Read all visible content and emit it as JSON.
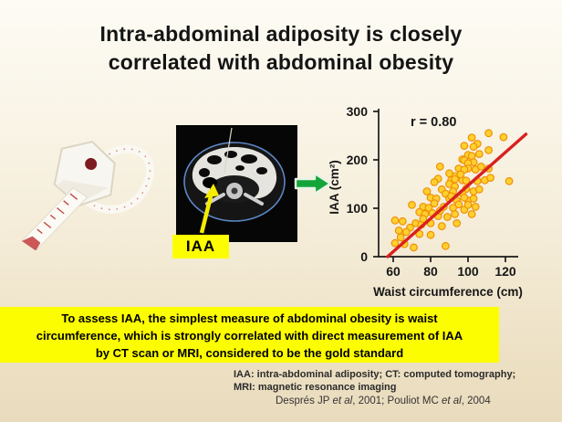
{
  "slide": {
    "title": {
      "line1": "Intra-abdominal adiposity is closely",
      "line2": "correlated with abdominal obesity"
    },
    "ct_label": "IAA",
    "highlight_box": {
      "bg_color": "#fdfd02",
      "lines": [
        "To assess IAA, the simplest measure of abdominal obesity is waist",
        "circumference, which is strongly correlated with direct measurement of IAA",
        "by CT scan or MRI, considered to be the gold standard"
      ]
    },
    "footnote": {
      "line1": "IAA: intra-abdominal adiposity; CT: computed tomography;",
      "line2": "MRI: magnetic resonance imaging"
    },
    "citation": {
      "p1": "Després JP ",
      "i1": "et al",
      "p2": ",  2001; Pouliot MC ",
      "i2": "et al",
      "p3": ", 2004"
    },
    "icons": {
      "tape_measure": "tape-measure-photo",
      "ct_scan": "abdominal-ct-scan-image",
      "arrow": "green-right-arrow"
    },
    "colors": {
      "background_top": "#fdfbf4",
      "background_bottom": "#e9dcbd",
      "highlight_yellow": "#fdfd02",
      "arrow_green": "#14a538",
      "trend_red": "#d8201f",
      "point_yellow": "#ffd02e"
    }
  },
  "chart_data": {
    "type": "scatter",
    "title": "",
    "annotation": "r = 0.80",
    "xlabel": "Waist circumference  (cm)",
    "ylabel": "IAA  (cm²)",
    "x_ticks": [
      "60",
      "80",
      "100",
      "120"
    ],
    "y_ticks": [
      "0",
      "100",
      "200",
      "300"
    ],
    "xlim": [
      52,
      130
    ],
    "ylim": [
      0,
      300
    ],
    "grid": false,
    "legend": "none",
    "point_style": {
      "fill": "#ffd02e",
      "stroke": "#ef9007"
    },
    "trend_line": {
      "x": [
        57,
        131
      ],
      "y": [
        0,
        253
      ],
      "color": "#d8201f"
    },
    "points": [
      [
        111,
        255
      ],
      [
        102,
        246
      ],
      [
        119,
        247
      ],
      [
        105,
        233
      ],
      [
        98,
        229
      ],
      [
        103,
        227
      ],
      [
        111,
        220
      ],
      [
        106,
        212
      ],
      [
        100,
        210
      ],
      [
        102,
        208
      ],
      [
        97,
        201
      ],
      [
        98,
        199
      ],
      [
        103,
        195
      ],
      [
        100,
        193
      ],
      [
        85,
        186
      ],
      [
        95,
        182
      ],
      [
        100,
        182
      ],
      [
        111,
        182
      ],
      [
        98,
        180
      ],
      [
        104,
        180
      ],
      [
        107,
        186
      ],
      [
        84,
        161
      ],
      [
        91,
        158
      ],
      [
        97,
        158
      ],
      [
        99,
        157
      ],
      [
        105,
        156
      ],
      [
        109,
        158
      ],
      [
        122,
        156
      ],
      [
        112,
        163
      ],
      [
        93,
        166
      ],
      [
        96,
        170
      ],
      [
        90,
        172
      ],
      [
        93,
        160
      ],
      [
        82,
        154
      ],
      [
        90,
        150
      ],
      [
        93,
        145
      ],
      [
        99,
        140
      ],
      [
        103,
        135
      ],
      [
        106,
        139
      ],
      [
        78,
        135
      ],
      [
        86,
        139
      ],
      [
        92,
        135
      ],
      [
        97,
        131
      ],
      [
        88,
        130
      ],
      [
        80,
        122
      ],
      [
        83,
        120
      ],
      [
        90,
        120
      ],
      [
        94,
        116
      ],
      [
        100,
        116
      ],
      [
        98,
        122
      ],
      [
        103,
        120
      ],
      [
        91,
        125
      ],
      [
        70,
        107
      ],
      [
        76,
        103
      ],
      [
        79,
        101
      ],
      [
        87,
        103
      ],
      [
        92,
        101
      ],
      [
        98,
        97
      ],
      [
        100,
        107
      ],
      [
        104,
        103
      ],
      [
        95,
        108
      ],
      [
        102,
        88
      ],
      [
        74,
        92
      ],
      [
        77,
        88
      ],
      [
        84,
        84
      ],
      [
        89,
        82
      ],
      [
        82,
        110
      ],
      [
        85,
        95
      ],
      [
        93,
        88
      ],
      [
        81,
        90
      ],
      [
        61,
        75
      ],
      [
        65,
        73
      ],
      [
        72,
        69
      ],
      [
        75,
        66
      ],
      [
        80,
        69
      ],
      [
        86,
        63
      ],
      [
        94,
        69
      ],
      [
        76,
        78
      ],
      [
        69,
        60
      ],
      [
        63,
        54
      ],
      [
        67,
        51
      ],
      [
        74,
        47
      ],
      [
        80,
        45
      ],
      [
        64,
        40
      ],
      [
        88,
        22
      ],
      [
        61,
        28
      ],
      [
        66,
        26
      ],
      [
        71,
        19
      ]
    ]
  }
}
